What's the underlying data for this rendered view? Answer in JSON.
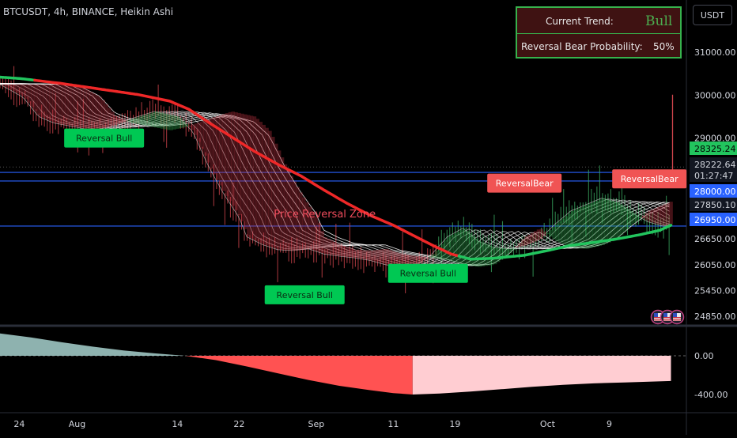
{
  "header": {
    "symbol_line": "BTCUSDT, 4h, BINANCE, Heikin Ashi"
  },
  "currency_button": "USDT",
  "trend_box": {
    "trend_label": "Current Trend:",
    "trend_value": "Bull",
    "reversal_label": "Reversal Bear Probability:",
    "reversal_value": "50%"
  },
  "colors": {
    "bull": "#22c55e",
    "bear": "#ef2828",
    "bull_label_bg": "#00c853",
    "bear_label_bg": "#f05454",
    "hist_bear": "#ff5252",
    "hist_bull": "#ffcdd2",
    "hist_early": "#b2dfdb",
    "level_line": "#2962ff"
  },
  "chart_data": {
    "type": "line",
    "price_axis": {
      "ticks": [
        31000,
        30000,
        29000,
        26650,
        26050,
        25450,
        24850
      ],
      "tick_labels": [
        "31000.00",
        "30000.00",
        "29000.00",
        "26650.00",
        "26050.00",
        "25450.00",
        "24850.00"
      ]
    },
    "price_badges": [
      {
        "label": "28325.24",
        "value": 28325.24,
        "kind": "last-bull"
      },
      {
        "label": "28222.64",
        "value": 28222.64,
        "kind": "price"
      },
      {
        "label": "01:27:47",
        "value": 28200,
        "kind": "countdown"
      },
      {
        "label": "28000.00",
        "value": 28000,
        "kind": "level"
      },
      {
        "label": "27850.10",
        "value": 27850.1,
        "kind": "price"
      },
      {
        "label": "26950.00",
        "value": 26950,
        "kind": "level"
      }
    ],
    "horizontal_levels": [
      28200,
      28000,
      26950
    ],
    "x_ticks": [
      {
        "label": "24",
        "d": -7.5
      },
      {
        "label": "Aug",
        "d": 0
      },
      {
        "label": "14",
        "d": 13
      },
      {
        "label": "22",
        "d": 21
      },
      {
        "label": "Sep",
        "d": 31
      },
      {
        "label": "11",
        "d": 41
      },
      {
        "label": "19",
        "d": 49
      },
      {
        "label": "Oct",
        "d": 61
      },
      {
        "label": "9",
        "d": 69
      }
    ],
    "x_range": [
      -10,
      79
    ],
    "series": [
      {
        "kind": "slow-trend",
        "points": [
          [
            -10,
            30420
          ],
          [
            -7,
            30380
          ],
          [
            -2,
            30270
          ],
          [
            3,
            30140
          ],
          [
            8,
            30010
          ],
          [
            12,
            29860
          ],
          [
            14.5,
            29670
          ],
          [
            17,
            29370
          ],
          [
            20,
            29030
          ],
          [
            23,
            28690
          ],
          [
            26,
            28390
          ],
          [
            29,
            28120
          ],
          [
            32,
            27790
          ],
          [
            35,
            27480
          ],
          [
            38,
            27200
          ],
          [
            41,
            26970
          ],
          [
            43.5,
            26740
          ],
          [
            46,
            26510
          ],
          [
            48.5,
            26300
          ],
          [
            51,
            26180
          ],
          [
            54,
            26200
          ],
          [
            58,
            26270
          ],
          [
            61,
            26380
          ],
          [
            64,
            26500
          ],
          [
            67,
            26570
          ],
          [
            70,
            26650
          ],
          [
            73,
            26750
          ],
          [
            75.5,
            26850
          ],
          [
            77,
            26970
          ]
        ],
        "segments": [
          {
            "from": -10,
            "to": -5.5,
            "trend": "bull"
          },
          {
            "from": -5.5,
            "to": 49.5,
            "trend": "bear"
          },
          {
            "from": 49.5,
            "to": 77,
            "trend": "bull"
          }
        ]
      },
      {
        "kind": "fast-ma",
        "points": [
          [
            -10,
            30250
          ],
          [
            -7,
            29950
          ],
          [
            -5,
            29500
          ],
          [
            -3,
            29350
          ],
          [
            0,
            29250
          ],
          [
            2,
            29180
          ],
          [
            4,
            29260
          ],
          [
            7,
            29450
          ],
          [
            10,
            29620
          ],
          [
            13,
            29500
          ],
          [
            15,
            29150
          ],
          [
            17,
            28350
          ],
          [
            19,
            27700
          ],
          [
            21,
            27150
          ],
          [
            22,
            26700
          ],
          [
            24,
            26520
          ],
          [
            26,
            26400
          ],
          [
            28,
            26380
          ],
          [
            30,
            26420
          ],
          [
            32,
            26300
          ],
          [
            34,
            26250
          ],
          [
            36,
            26210
          ],
          [
            38,
            26150
          ],
          [
            40,
            26050
          ],
          [
            42,
            26000
          ],
          [
            44,
            26050
          ],
          [
            46,
            26300
          ],
          [
            48,
            26700
          ],
          [
            50,
            26900
          ],
          [
            52,
            26600
          ],
          [
            54,
            26450
          ],
          [
            56,
            26420
          ],
          [
            58,
            26500
          ],
          [
            60,
            26650
          ],
          [
            62,
            27000
          ],
          [
            64,
            27300
          ],
          [
            66,
            27450
          ],
          [
            68,
            27600
          ],
          [
            70,
            27500
          ],
          [
            72,
            27250
          ],
          [
            74,
            27050
          ],
          [
            76,
            26950
          ],
          [
            77,
            27000
          ]
        ]
      }
    ],
    "annotations": [
      {
        "text": "Reversal Bull",
        "d": 3.5,
        "price": 29000,
        "trend": "bull"
      },
      {
        "text": "Reversal Bull",
        "d": 29.5,
        "price": 25350,
        "trend": "bull"
      },
      {
        "text": "Reversal Bull",
        "d": 45.5,
        "price": 25850,
        "trend": "bull"
      },
      {
        "text": "ReversalBear",
        "d": 58,
        "price": 27950,
        "trend": "bear"
      },
      {
        "text": "ReversalBear",
        "d": 74.2,
        "price": 28050,
        "trend": "bear"
      },
      {
        "text": "Price Reversal Zone",
        "d": 25.5,
        "price": 27150,
        "trend": "bear"
      }
    ],
    "oscillator": {
      "axis_ticks": [
        0,
        -400
      ],
      "axis_labels": [
        "0.00",
        "-400.00"
      ],
      "segments": [
        {
          "trend": "bull-early",
          "points": [
            [
              -10,
              230
            ],
            [
              -6,
              190
            ],
            [
              -2,
              140
            ],
            [
              2,
              95
            ],
            [
              6,
              55
            ],
            [
              10,
              25
            ],
            [
              14,
              0
            ]
          ]
        },
        {
          "trend": "bear",
          "points": [
            [
              14,
              0
            ],
            [
              18,
              -45
            ],
            [
              22,
              -110
            ],
            [
              26,
              -180
            ],
            [
              30,
              -250
            ],
            [
              34,
              -310
            ],
            [
              38,
              -355
            ],
            [
              41,
              -385
            ],
            [
              43.5,
              -400
            ]
          ]
        },
        {
          "trend": "bull",
          "points": [
            [
              43.5,
              -400
            ],
            [
              47,
              -390
            ],
            [
              51,
              -370
            ],
            [
              55,
              -345
            ],
            [
              59,
              -320
            ],
            [
              63,
              -300
            ],
            [
              67,
              -285
            ],
            [
              71,
              -275
            ],
            [
              75,
              -265
            ],
            [
              77,
              -260
            ]
          ]
        }
      ]
    }
  }
}
